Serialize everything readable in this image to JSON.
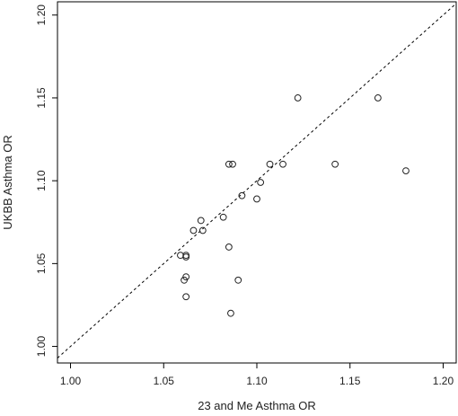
{
  "chart_data": {
    "type": "scatter",
    "title": "",
    "xlabel": "23 and Me Asthma OR",
    "ylabel": "UKBB Asthma OR",
    "xlim": [
      0.993,
      1.207
    ],
    "ylim": [
      0.99,
      1.208
    ],
    "xticks": [
      1.0,
      1.05,
      1.1,
      1.15,
      1.2
    ],
    "yticks": [
      1.0,
      1.05,
      1.1,
      1.15,
      1.2
    ],
    "xtick_labels": [
      "1.00",
      "1.05",
      "1.10",
      "1.15",
      "1.20"
    ],
    "ytick_labels": [
      "1.00",
      "1.05",
      "1.10",
      "1.15",
      "1.20"
    ],
    "reference_line": "y = x (dashed)",
    "grid": false,
    "legend": "none",
    "colors": {
      "points": "#222222",
      "axis": "#000000"
    },
    "points": [
      {
        "x": 1.059,
        "y": 1.055
      },
      {
        "x": 1.062,
        "y": 1.054
      },
      {
        "x": 1.062,
        "y": 1.055
      },
      {
        "x": 1.061,
        "y": 1.04
      },
      {
        "x": 1.062,
        "y": 1.042
      },
      {
        "x": 1.062,
        "y": 1.03
      },
      {
        "x": 1.066,
        "y": 1.07
      },
      {
        "x": 1.07,
        "y": 1.076
      },
      {
        "x": 1.071,
        "y": 1.07
      },
      {
        "x": 1.082,
        "y": 1.078
      },
      {
        "x": 1.085,
        "y": 1.06
      },
      {
        "x": 1.085,
        "y": 1.11
      },
      {
        "x": 1.087,
        "y": 1.11
      },
      {
        "x": 1.086,
        "y": 1.02
      },
      {
        "x": 1.09,
        "y": 1.04
      },
      {
        "x": 1.092,
        "y": 1.091
      },
      {
        "x": 1.1,
        "y": 1.089
      },
      {
        "x": 1.102,
        "y": 1.099
      },
      {
        "x": 1.107,
        "y": 1.11
      },
      {
        "x": 1.114,
        "y": 1.11
      },
      {
        "x": 1.122,
        "y": 1.15
      },
      {
        "x": 1.142,
        "y": 1.11
      },
      {
        "x": 1.165,
        "y": 1.15
      },
      {
        "x": 1.18,
        "y": 1.106
      }
    ]
  }
}
